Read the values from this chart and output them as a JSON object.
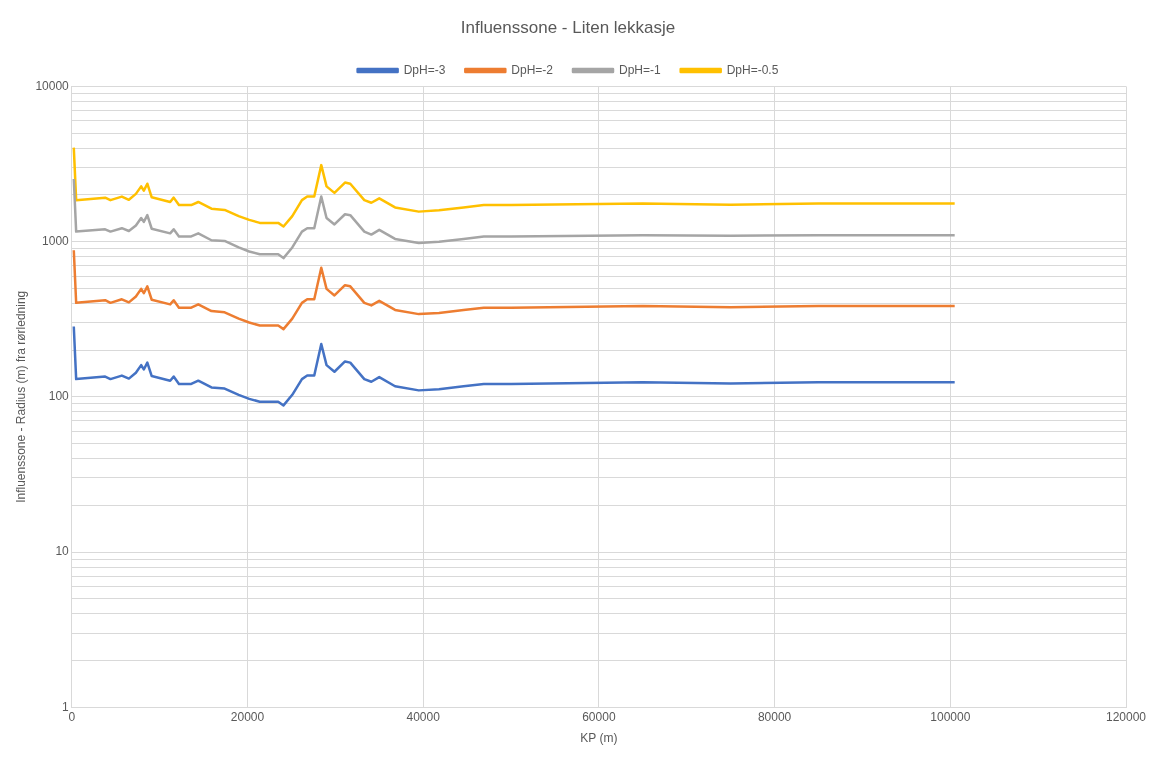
{
  "chart_data": {
    "type": "line",
    "title": "Influenssone - Liten lekkasje",
    "xlabel": "KP (m)",
    "ylabel": "Influenssone - Radius (m) fra rørledning",
    "log": "y",
    "grid": true,
    "legend": "top",
    "marker": "none",
    "line_style": "solid",
    "x": [
      230,
      500,
      3800,
      4400,
      5700,
      6500,
      7300,
      7900,
      8200,
      8600,
      9100,
      11200,
      11600,
      12200,
      13600,
      14400,
      15900,
      17400,
      19000,
      20200,
      21400,
      23500,
      24100,
      25100,
      26200,
      26800,
      27600,
      28400,
      29000,
      29900,
      31100,
      31700,
      33300,
      34100,
      35000,
      36800,
      39500,
      41800,
      44600,
      46900,
      50000,
      65000,
      75000,
      85000,
      100500
    ],
    "xlim": [
      0,
      120000
    ],
    "xticks": [
      0,
      20000,
      40000,
      60000,
      80000,
      100000,
      120000
    ],
    "ylim": [
      1,
      10000
    ],
    "yticks": [
      1,
      {
        "value": 2,
        "label": null
      },
      {
        "value": 3,
        "label": null
      },
      {
        "value": 4,
        "label": null
      },
      {
        "value": 5,
        "label": null
      },
      {
        "value": 6,
        "label": null
      },
      {
        "value": 7,
        "label": null
      },
      {
        "value": 8,
        "label": null
      },
      {
        "value": 9,
        "label": null
      },
      10,
      {
        "value": 20,
        "label": null
      },
      {
        "value": 30,
        "label": null
      },
      {
        "value": 40,
        "label": null
      },
      {
        "value": 50,
        "label": null
      },
      {
        "value": 60,
        "label": null
      },
      {
        "value": 70,
        "label": null
      },
      {
        "value": 80,
        "label": null
      },
      {
        "value": 90,
        "label": null
      },
      100,
      {
        "value": 200,
        "label": null
      },
      {
        "value": 300,
        "label": null
      },
      {
        "value": 400,
        "label": null
      },
      {
        "value": 500,
        "label": null
      },
      {
        "value": 600,
        "label": null
      },
      {
        "value": 700,
        "label": null
      },
      {
        "value": 800,
        "label": null
      },
      {
        "value": 900,
        "label": null
      },
      1000,
      {
        "value": 2000,
        "label": null
      },
      {
        "value": 3000,
        "label": null
      },
      {
        "value": 4000,
        "label": null
      },
      {
        "value": 5000,
        "label": null
      },
      {
        "value": 6000,
        "label": null
      },
      {
        "value": 7000,
        "label": null
      },
      {
        "value": 8000,
        "label": null
      },
      {
        "value": 9000,
        "label": null
      },
      10000
    ],
    "series": [
      {
        "name": "DpH=-3",
        "color": "#4472c4",
        "values": [
          284,
          130,
          135,
          130,
          137,
          131,
          143,
          160,
          150,
          166,
          136,
          127,
          135,
          121,
          121,
          127,
          115,
          113,
          103,
          97,
          93,
          93,
          88,
          103,
          130,
          137,
          137,
          219,
          160,
          145,
          169,
          166,
          130,
          125,
          134,
          117,
          110,
          112,
          117,
          121,
          121,
          124,
          122,
          124,
          124
        ]
      },
      {
        "name": "DpH=-2",
        "color": "#ed7d31",
        "values": [
          880,
          403,
          419,
          403,
          425,
          406,
          443,
          496,
          465,
          515,
          422,
          394,
          419,
          375,
          375,
          394,
          357,
          350,
          319,
          301,
          288,
          288,
          273,
          319,
          403,
          425,
          425,
          679,
          496,
          450,
          524,
          515,
          403,
          388,
          415,
          363,
          341,
          347,
          363,
          375,
          375,
          384,
          378,
          384,
          384
        ]
      },
      {
        "name": "DpH=-1",
        "color": "#a5a5a5",
        "values": [
          2530,
          1160,
          1200,
          1160,
          1220,
          1170,
          1270,
          1420,
          1340,
          1480,
          1210,
          1130,
          1200,
          1080,
          1080,
          1130,
          1020,
          1010,
          917,
          863,
          828,
          828,
          783,
          917,
          1160,
          1220,
          1220,
          1950,
          1420,
          1290,
          1500,
          1480,
          1160,
          1110,
          1190,
          1040,
          979,
          997,
          1040,
          1080,
          1080,
          1100,
          1090,
          1100,
          1100
        ]
      },
      {
        "name": "DpH=-0.5",
        "color": "#ffc000",
        "values": [
          4030,
          1850,
          1920,
          1850,
          1950,
          1860,
          2030,
          2270,
          2130,
          2360,
          1930,
          1800,
          1920,
          1720,
          1720,
          1800,
          1630,
          1600,
          1460,
          1380,
          1320,
          1320,
          1250,
          1460,
          1850,
          1950,
          1950,
          3110,
          2270,
          2060,
          2400,
          2360,
          1850,
          1780,
          1900,
          1660,
          1560,
          1590,
          1660,
          1720,
          1720,
          1760,
          1730,
          1760,
          1760
        ]
      }
    ]
  }
}
